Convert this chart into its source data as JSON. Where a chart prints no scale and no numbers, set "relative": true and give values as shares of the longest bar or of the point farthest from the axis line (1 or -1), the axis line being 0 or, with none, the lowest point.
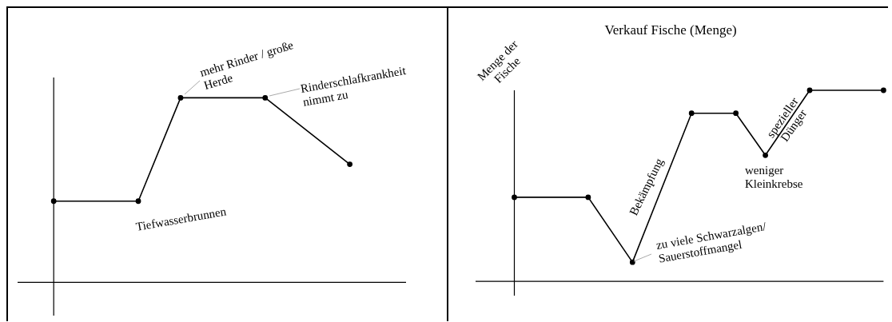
{
  "chart_data": [
    {
      "type": "line",
      "relative": true,
      "categories": [
        null,
        null,
        null,
        null,
        null,
        null,
        null,
        null,
        null,
        null,
        null,
        null,
        null,
        null,
        null
      ],
      "series": [
        {
          "color": "#000000",
          "values": [
            0.44,
            null,
            null,
            null,
            0.44,
            null,
            1,
            null,
            null,
            null,
            1,
            null,
            null,
            null,
            0.64
          ],
          "marker": "circle"
        }
      ],
      "annotations": [
        "mehr Rinder / große\nHerde",
        "Rinderschlafkrankheit\nnimmt zu",
        "Tiefwasserbrunnen"
      ]
    },
    {
      "type": "line",
      "relative": true,
      "title": "Verkauf Fische (Menge)",
      "ylabel": "Menge der\nFische",
      "categories": [
        null,
        null,
        null,
        null,
        null,
        null,
        null,
        null,
        null,
        null,
        null,
        null,
        null,
        null,
        null,
        null,
        null,
        null,
        null,
        null,
        null,
        null,
        null,
        null,
        null,
        null
      ],
      "series": [
        {
          "color": "#000000",
          "values": [
            0.44,
            null,
            null,
            null,
            null,
            0.44,
            null,
            null,
            0.1,
            null,
            null,
            null,
            0.88,
            null,
            null,
            0.88,
            null,
            0.66,
            null,
            null,
            1,
            null,
            null,
            null,
            null,
            1
          ],
          "marker": "circle"
        }
      ],
      "annotations": [
        "zu viele Schwarzalgen/\nSauerstoffmangel",
        "Bekämpfung",
        "weniger\nKleinkrebse",
        "spezieller\nDünger"
      ]
    }
  ]
}
